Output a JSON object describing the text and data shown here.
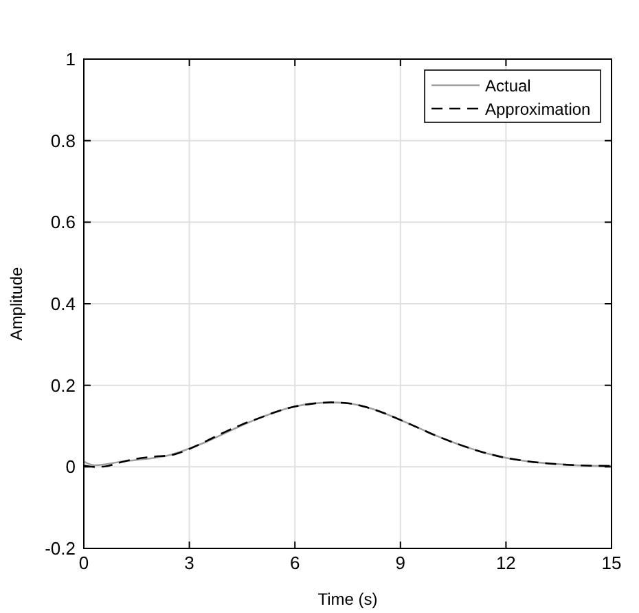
{
  "chart_data": {
    "type": "line",
    "xlabel": "Time (s)",
    "ylabel": "Amplitude",
    "xlim": [
      0,
      15
    ],
    "ylim": [
      -0.2,
      1
    ],
    "xticks": [
      0,
      3,
      6,
      9,
      12,
      15
    ],
    "yticks": [
      -0.2,
      0,
      0.2,
      0.4,
      0.6,
      0.8,
      1
    ],
    "grid": true,
    "legend": "top right",
    "series": [
      {
        "name": "Actual",
        "color": "#a0a0a0",
        "line_style": "solid",
        "x": [
          0,
          0.3,
          0.6,
          1,
          1.5,
          2,
          2.5,
          3,
          3.5,
          4,
          4.5,
          5,
          5.5,
          6,
          6.5,
          7,
          7.5,
          8,
          8.5,
          9,
          9.5,
          10,
          10.5,
          11,
          11.5,
          12,
          12.5,
          13,
          14,
          15
        ],
        "values": [
          0.013,
          0.004,
          0.006,
          0.012,
          0.017,
          0.022,
          0.03,
          0.045,
          0.062,
          0.082,
          0.102,
          0.12,
          0.136,
          0.148,
          0.155,
          0.158,
          0.156,
          0.147,
          0.133,
          0.115,
          0.096,
          0.077,
          0.06,
          0.045,
          0.032,
          0.022,
          0.015,
          0.01,
          0.004,
          0.002
        ]
      },
      {
        "name": "Approximation",
        "color": "#000000",
        "line_style": "dashed",
        "x": [
          0,
          0.3,
          0.6,
          1,
          1.5,
          2,
          2.5,
          3,
          3.5,
          4,
          4.5,
          5,
          5.5,
          6,
          6.5,
          7,
          7.5,
          8,
          8.5,
          9,
          9.5,
          10,
          10.5,
          11,
          11.5,
          12,
          12.5,
          13,
          14,
          15
        ],
        "values": [
          0.003,
          0.0,
          0.001,
          0.01,
          0.02,
          0.025,
          0.029,
          0.044,
          0.064,
          0.085,
          0.104,
          0.12,
          0.136,
          0.148,
          0.155,
          0.158,
          0.156,
          0.147,
          0.133,
          0.115,
          0.096,
          0.077,
          0.06,
          0.045,
          0.032,
          0.022,
          0.015,
          0.01,
          0.004,
          0.002
        ]
      }
    ]
  }
}
